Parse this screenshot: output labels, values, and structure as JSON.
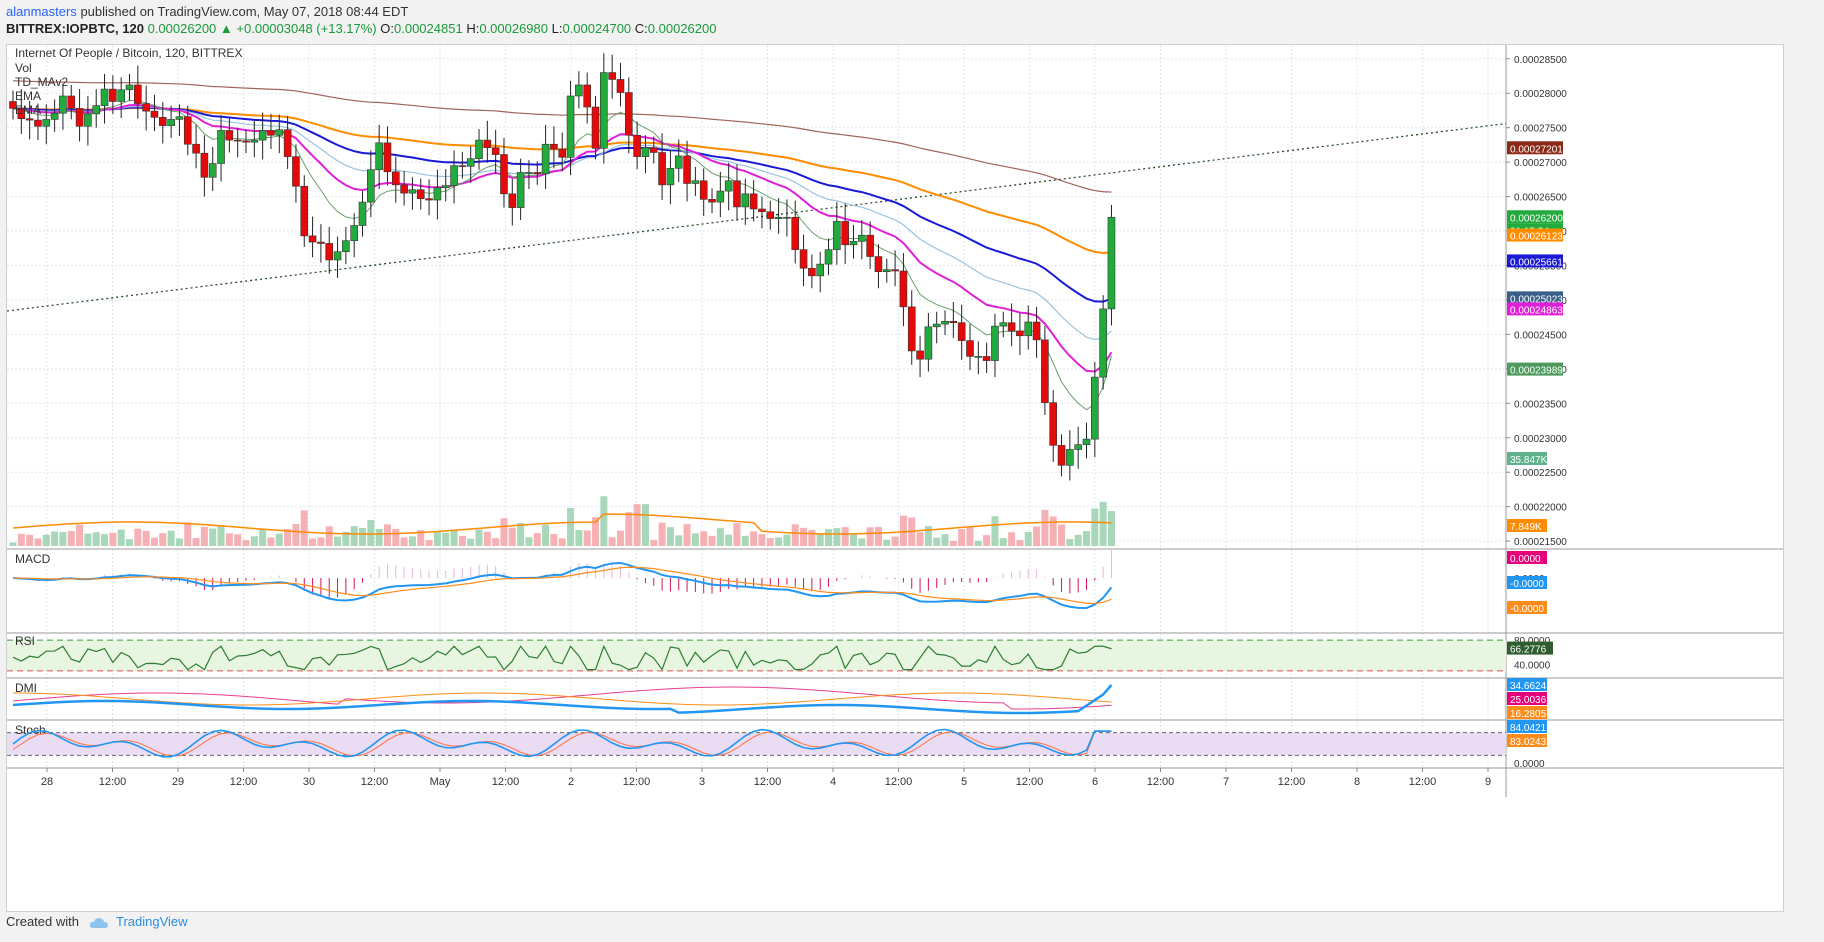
{
  "header": {
    "user": "alanmasters",
    "published_text": "published on TradingView.com, May 07, 2018 08:44 EDT",
    "symbol": "BITTREX:IOPBTC, 120",
    "last": "0.00026200",
    "change": "+0.00003048 (+13.17%)",
    "o_label": "O:",
    "o": "0.00024851",
    "h_label": "H:",
    "h": "0.00026980",
    "l_label": "L:",
    "l": "0.00024700",
    "c_label": "C:",
    "c": "0.00026200"
  },
  "footer": {
    "created_with": "Created with",
    "brand": "TradingView"
  },
  "colors": {
    "up": "#22ab3c",
    "down": "#e50a0a",
    "ema_blue": "#1a1ad6",
    "ema_magenta": "#e020d8",
    "ema_orange": "#ff8c00",
    "ema_brown": "#a0645a",
    "ema_lightblue": "#9cc3df",
    "ema_green": "#6aa06a",
    "macd": "#2196f3",
    "signal": "#ff8c1a",
    "rsi": "#2e7d32",
    "stoch_k": "#2196f3",
    "stoch_d": "#ff7043"
  },
  "chart_data": {
    "type": "candlestick",
    "title": "Internet Of People / Bitcoin, 120, BITTREX",
    "indicators": [
      "Vol",
      "TD_MAv2",
      "EMA",
      "EMA"
    ],
    "price_ylim": [
      0.000214,
      0.000287
    ],
    "price_ticks": [
      "0.00028500",
      "0.00028000",
      "0.00027500",
      "0.00027000",
      "0.00026500",
      "0.00026000",
      "0.00025500",
      "0.00025000",
      "0.00024500",
      "0.00024000",
      "0.00023500",
      "0.00023000",
      "0.00022500",
      "0.00022000",
      "0.00021500"
    ],
    "x_labels": [
      "28",
      "12:00",
      "29",
      "12:00",
      "30",
      "12:00",
      "May",
      "12:00",
      "2",
      "12:00",
      "3",
      "12:00",
      "4",
      "12:00",
      "5",
      "12:00",
      "6",
      "12:00",
      "7",
      "12:00",
      "8",
      "12:00",
      "9"
    ],
    "candles_close": [
      0.0002778,
      0.0002763,
      0.0002761,
      0.0002752,
      0.0002762,
      0.0002771,
      0.0002796,
      0.0002778,
      0.0002752,
      0.000277,
      0.0002782,
      0.0002806,
      0.0002788,
      0.0002805,
      0.0002812,
      0.0002785,
      0.0002774,
      0.0002765,
      0.0002753,
      0.0002762,
      0.0002766,
      0.0002726,
      0.0002713,
      0.0002678,
      0.0002698,
      0.0002746,
      0.0002732,
      0.0002731,
      0.0002729,
      0.0002732,
      0.0002746,
      0.0002739,
      0.0002747,
      0.0002708,
      0.0002665,
      0.0002593,
      0.0002584,
      0.0002582,
      0.0002558,
      0.000257,
      0.0002586,
      0.0002608,
      0.0002642,
      0.0002689,
      0.0002728,
      0.0002686,
      0.0002667,
      0.0002655,
      0.000266,
      0.0002647,
      0.0002645,
      0.0002663,
      0.0002666,
      0.0002695,
      0.0002694,
      0.0002705,
      0.0002732,
      0.0002721,
      0.0002711,
      0.0002654,
      0.0002634,
      0.0002685,
      0.0002685,
      0.0002683,
      0.0002726,
      0.0002719,
      0.0002707,
      0.0002796,
      0.0002812,
      0.000278,
      0.000272,
      0.000283,
      0.000282,
      0.0002801,
      0.0002739,
      0.0002708,
      0.0002721,
      0.0002714,
      0.0002667,
      0.0002691,
      0.0002709,
      0.0002669,
      0.0002673,
      0.0002646,
      0.0002642,
      0.0002658,
      0.0002673,
      0.0002635,
      0.0002654,
      0.0002632,
      0.0002628,
      0.0002618,
      0.000262,
      0.000262,
      0.0002573,
      0.0002546,
      0.0002535,
      0.0002552,
      0.0002573,
      0.0002614,
      0.000258,
      0.0002585,
      0.0002594,
      0.0002563,
      0.0002541,
      0.0002544,
      0.0002542,
      0.000249,
      0.0002426,
      0.0002414,
      0.0002461,
      0.0002465,
      0.0002469,
      0.0002467,
      0.0002441,
      0.0002418,
      0.0002418,
      0.0002412,
      0.0002462,
      0.0002467,
      0.0002455,
      0.0002448,
      0.0002468,
      0.0002442,
      0.0002351,
      0.0002289,
      0.000226,
      0.0002283,
      0.000229,
      0.0002298,
      0.0002388,
      0.0002487,
      0.000262
    ],
    "volume_ylim": [
      0,
      55
    ],
    "volume_labels": [
      "35.847K",
      "7.849K"
    ],
    "price_badges": [
      "0.00027201",
      "0.00026200",
      "01:15:24",
      "0.00026123",
      "0.00025661",
      "0.00025023",
      "0.00024863",
      "0.00023989"
    ],
    "macd": {
      "label": "MACD",
      "badges": [
        "0.0000",
        "-0.0000",
        "-0.0000"
      ],
      "ticks": [
        "0.0000"
      ]
    },
    "rsi": {
      "label": "RSI",
      "ticks": [
        "80.0000",
        "40.0000"
      ],
      "badges": [
        "66.2776"
      ],
      "ylim": [
        20,
        90
      ],
      "bands": [
        30,
        70
      ]
    },
    "dmi": {
      "label": "DMI",
      "badges": [
        "34.6624",
        "25.0036",
        "16.2805"
      ]
    },
    "stoch": {
      "label": "Stoch",
      "ticks": [
        "0.0000"
      ],
      "badges": [
        "84.0421",
        "83.0243"
      ],
      "ylim": [
        0,
        100
      ],
      "bands": [
        20,
        80
      ]
    }
  }
}
